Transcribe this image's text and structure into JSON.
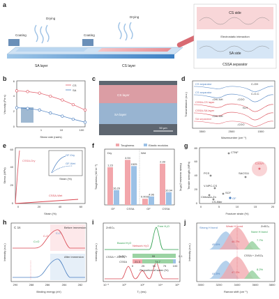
{
  "panel_labels": [
    "a",
    "b",
    "c",
    "d",
    "e",
    "f",
    "g",
    "h",
    "i",
    "j"
  ],
  "a": {
    "steps": [
      "Coating",
      "Drying",
      "Coating",
      "Drying"
    ],
    "layers": [
      "SA layer",
      "CS layer"
    ],
    "zoom": {
      "top": "CS side",
      "middle": "Electrostatic interaction",
      "bottom": "SA side"
    },
    "caption": "CSSA separator"
  },
  "b": {
    "ylabel": "Viscosity (Pa·s)",
    "xlabel": "Shear rate (rad/s)",
    "series": [
      {
        "name": "CS",
        "color": "#e05a66"
      },
      {
        "name": "SA",
        "color": "#4a7fc1"
      }
    ],
    "ticks_x": [
      "1",
      "10",
      "100"
    ],
    "ticks_y": [
      "0",
      "2",
      "4",
      "6"
    ],
    "chart_data": {
      "type": "line",
      "x": [
        0.1,
        0.3,
        1,
        3,
        10,
        30,
        100
      ],
      "series": [
        {
          "name": "CS",
          "values": [
            4.7,
            4.6,
            4.4,
            4.0,
            3.5,
            2.9,
            2.2
          ]
        },
        {
          "name": "SA",
          "values": [
            2.5,
            2.4,
            2.2,
            1.8,
            1.4,
            1.0,
            0.6
          ]
        }
      ],
      "ylim": [
        0,
        6
      ]
    }
  },
  "c": {
    "layers": [
      "CS layer",
      "SA layer"
    ],
    "scale": "50 μm"
  },
  "d": {
    "ylabel": "Transmittance (a.u.)",
    "xlabel": "Wavenumber (cm⁻¹)",
    "ticks_x": [
      "3500",
      "2500",
      "1500"
    ],
    "legend": [
      "CS separator",
      "CS separator",
      "CSSA-CS layer",
      "CSSA-SA layer",
      "SA separator"
    ],
    "annotations": [
      "C-OH",
      "C-O-C",
      "-OH/-NH",
      "-COO",
      "N-H",
      "-OH/-NH",
      "-COO"
    ]
  },
  "e": {
    "ylabel": "Stress (MPa)",
    "xlabel": "Strain (%)",
    "ticks_x": [
      "0",
      "20",
      "40",
      "60"
    ],
    "ticks_y": [
      "0",
      "20",
      "40",
      "60"
    ],
    "labels": [
      "CSSA-Dry",
      "CSSA-Wet",
      "GF-Dry",
      "GF-Wet"
    ],
    "inset": {
      "ylabel": "Stress (MPa)",
      "xlabel": "Strain (%)",
      "ticks_x": [
        "0",
        "5",
        "10"
      ]
    }
  },
  "f": {
    "legend": [
      "Toughness",
      "Elastic modulus"
    ],
    "ylabel": "Toughness (MJ m⁻³)",
    "y2label": "Elastic modulus (MPa)",
    "groups": [
      "Dry",
      "Wet"
    ],
    "categories": [
      "GF",
      "CSSA",
      "GF",
      "CSSA"
    ],
    "chart_data": {
      "type": "bar",
      "categories": [
        "GF-Dry",
        "CSSA-Dry",
        "GF-Wet",
        "CSSA-Wet"
      ],
      "series": [
        {
          "name": "Toughness",
          "values": [
            1.23,
            4.94,
            0.0032,
            2.39
          ]
        },
        {
          "name": "Elastic modulus",
          "values": [
            16.29,
            1525,
            4.96,
            10.94
          ]
        }
      ]
    },
    "value_labels": [
      "1.23",
      "16.29",
      "4.94",
      "1525",
      "0.0032",
      "4.96",
      "2.39",
      "10.94"
    ]
  },
  "g": {
    "ylabel": "Tensile strength (MPa)",
    "xlabel": "Fracture strain (%)",
    "ticks_x": [
      "0",
      "5",
      "10",
      "15",
      "20"
    ],
    "ticks_y": [
      "0",
      "20",
      "40",
      "60",
      "80"
    ],
    "points": [
      "CTNF",
      "PCS",
      "SACS11",
      "V-NPC-CS",
      "SCF",
      "Chitosan-Zn",
      "CS-filter",
      "GF",
      "CSSA"
    ]
  },
  "h": {
    "title": "C 1s",
    "ylabel": "Intensity (a.u.)",
    "xlabel": "Binding energy (eV)",
    "ticks_x": [
      "290",
      "288",
      "286",
      "284",
      "282"
    ],
    "labels": [
      "Before immersion",
      "After immersion",
      "C=O",
      "C-O",
      "C-C"
    ]
  },
  "i": {
    "ylabel": "Intensity (a.u.)",
    "xlabel": "T₂ (ms)",
    "ticks_x": [
      "10⁻²",
      "10⁰",
      "10²",
      "10⁴",
      "10⁶"
    ],
    "labels": [
      "ZnSO₄",
      "Free H₂O",
      "Bound H₂O",
      "Network H₂O",
      "CSSA + ZnSO₄"
    ],
    "bar": {
      "rows": [
        "ZnSO₄",
        "CSSA"
      ],
      "values": [
        [
          "99",
          "0.1"
        ],
        [
          "21.3",
          "74.7",
          "4"
        ]
      ],
      "axis": "Proportion of water (%)",
      "ticks": [
        "0",
        "25",
        "50",
        "75",
        "100"
      ]
    }
  },
  "j": {
    "ylabel": "Intensity (a.u.)",
    "xlabel": "Raman shift (cm⁻¹)",
    "ticks_x": [
      "3000",
      "3200",
      "3400",
      "3600",
      "3800"
    ],
    "labels": [
      "Strong H bond",
      "Weak H bond",
      "None H bond",
      "ZnSO₄",
      "CSSA + ZnSO₄"
    ],
    "top_pct": [
      "45.6%",
      "46.7%",
      "7.7%"
    ],
    "bottom_pct": [
      "44.5%",
      "47.2%",
      "8.2%"
    ]
  }
}
